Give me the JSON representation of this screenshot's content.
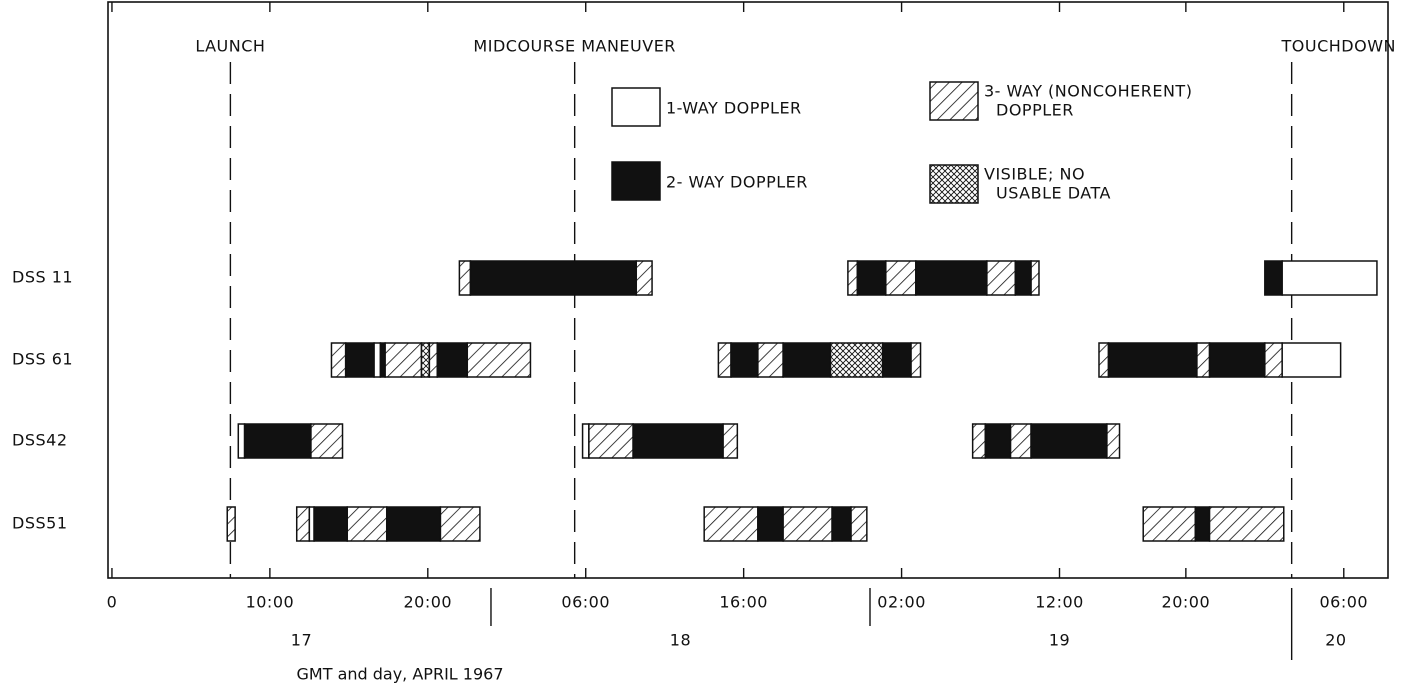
{
  "chart_data": {
    "type": "gantt",
    "x_label": "GMT and day, APRIL 1967",
    "xlim": [
      -0.25,
      80.8
    ],
    "xticks": [
      0,
      {
        "value": 10,
        "label": "10:00"
      },
      {
        "value": 20,
        "label": "20:00"
      },
      {
        "value": 30,
        "label": "06:00"
      },
      {
        "value": 40,
        "label": "16:00"
      },
      {
        "value": 50,
        "label": "02:00"
      },
      {
        "value": 60,
        "label": "12:00"
      },
      {
        "value": 68,
        "label": "20:00"
      },
      {
        "value": 78,
        "label": "06:00"
      }
    ],
    "days": [
      {
        "label": "17",
        "center": 12
      },
      {
        "label": "18",
        "center": 36
      },
      {
        "label": "19",
        "center": 60
      },
      {
        "label": "20",
        "center": 77.5
      }
    ],
    "day_boundaries": [
      24,
      48
    ],
    "events": [
      {
        "label": "LAUNCH",
        "x": 7.5
      },
      {
        "label": "MIDCOURSE MANEUVER",
        "x": 29.3
      },
      {
        "label": "TOUCHDOWN",
        "x": 74.7
      }
    ],
    "legend": [
      {
        "lines": [
          "1-WAY DOPPLER"
        ],
        "fill": "none"
      },
      {
        "lines": [
          "2- WAY DOPPLER"
        ],
        "fill": "solid"
      },
      {
        "lines": [
          "3- WAY (NONCOHERENT)",
          "DOPPLER"
        ],
        "fill": "hatch"
      },
      {
        "lines": [
          "VISIBLE; NO",
          "USABLE DATA"
        ],
        "fill": "crosshatch"
      }
    ],
    "series": [
      {
        "name": "DSS 11",
        "segments": [
          [
            22.0,
            22.7,
            2
          ],
          [
            22.7,
            33.2,
            1
          ],
          [
            33.2,
            34.2,
            2
          ],
          [
            46.6,
            47.2,
            2
          ],
          [
            47.2,
            49.0,
            1
          ],
          [
            49.0,
            50.9,
            2
          ],
          [
            50.9,
            55.4,
            1
          ],
          [
            55.4,
            57.2,
            2
          ],
          [
            57.2,
            58.2,
            1
          ],
          [
            58.2,
            58.7,
            2
          ],
          [
            73.0,
            74.1,
            1
          ],
          [
            74.1,
            80.1,
            0
          ]
        ]
      },
      {
        "name": "DSS 61",
        "segments": [
          [
            13.9,
            14.8,
            2
          ],
          [
            14.8,
            16.6,
            1
          ],
          [
            16.6,
            17.0,
            0
          ],
          [
            17.0,
            17.3,
            1
          ],
          [
            17.3,
            19.6,
            2
          ],
          [
            19.6,
            20.1,
            3
          ],
          [
            20.1,
            20.6,
            2
          ],
          [
            20.6,
            22.5,
            1
          ],
          [
            22.5,
            26.5,
            2
          ],
          [
            38.4,
            39.2,
            2
          ],
          [
            39.2,
            40.9,
            1
          ],
          [
            40.9,
            42.5,
            2
          ],
          [
            42.5,
            45.5,
            1
          ],
          [
            45.5,
            48.8,
            3
          ],
          [
            48.8,
            50.6,
            1
          ],
          [
            50.6,
            51.2,
            2
          ],
          [
            62.5,
            63.1,
            2
          ],
          [
            63.1,
            68.7,
            1
          ],
          [
            68.7,
            69.5,
            2
          ],
          [
            69.5,
            73.0,
            1
          ],
          [
            73.0,
            74.1,
            2
          ],
          [
            74.1,
            77.8,
            0
          ]
        ]
      },
      {
        "name": "DSS42",
        "segments": [
          [
            8.0,
            8.4,
            0
          ],
          [
            8.4,
            12.6,
            1
          ],
          [
            12.6,
            14.6,
            2
          ],
          [
            29.8,
            30.2,
            0
          ],
          [
            30.2,
            33.0,
            2
          ],
          [
            33.0,
            38.7,
            1
          ],
          [
            38.7,
            39.6,
            2
          ],
          [
            54.5,
            55.3,
            2
          ],
          [
            55.3,
            56.9,
            1
          ],
          [
            56.9,
            58.2,
            2
          ],
          [
            58.2,
            63.0,
            1
          ],
          [
            63.0,
            63.8,
            2
          ]
        ]
      },
      {
        "name": "DSS51",
        "segments": [
          [
            7.3,
            7.8,
            2
          ],
          [
            11.7,
            12.5,
            2
          ],
          [
            12.5,
            12.8,
            0
          ],
          [
            12.8,
            14.9,
            1
          ],
          [
            14.9,
            17.4,
            2
          ],
          [
            17.4,
            20.8,
            1
          ],
          [
            20.8,
            23.3,
            2
          ],
          [
            37.5,
            40.9,
            2
          ],
          [
            40.9,
            42.5,
            1
          ],
          [
            42.5,
            45.6,
            2
          ],
          [
            45.6,
            46.8,
            1
          ],
          [
            46.8,
            47.8,
            2
          ],
          [
            65.3,
            68.6,
            2
          ],
          [
            68.6,
            69.5,
            1
          ],
          [
            69.5,
            74.2,
            2
          ]
        ]
      }
    ]
  }
}
